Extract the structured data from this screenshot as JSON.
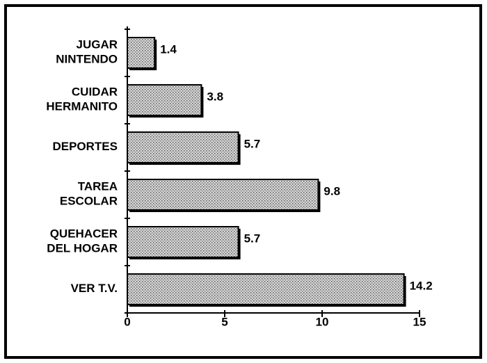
{
  "chart_data": {
    "type": "barh",
    "categories": [
      "JUGAR\nNINTENDO",
      "CUIDAR\nHERMANITO",
      "DEPORTES",
      "TAREA\nESCOLAR",
      "QUEHACER\nDEL HOGAR",
      "VER T.V."
    ],
    "values": [
      1.4,
      3.8,
      5.7,
      9.8,
      5.7,
      14.2
    ],
    "color": "#b8b8b8",
    "xlim": [
      0,
      15
    ],
    "xticks": [
      0,
      5,
      10,
      15
    ],
    "grid": false
  }
}
